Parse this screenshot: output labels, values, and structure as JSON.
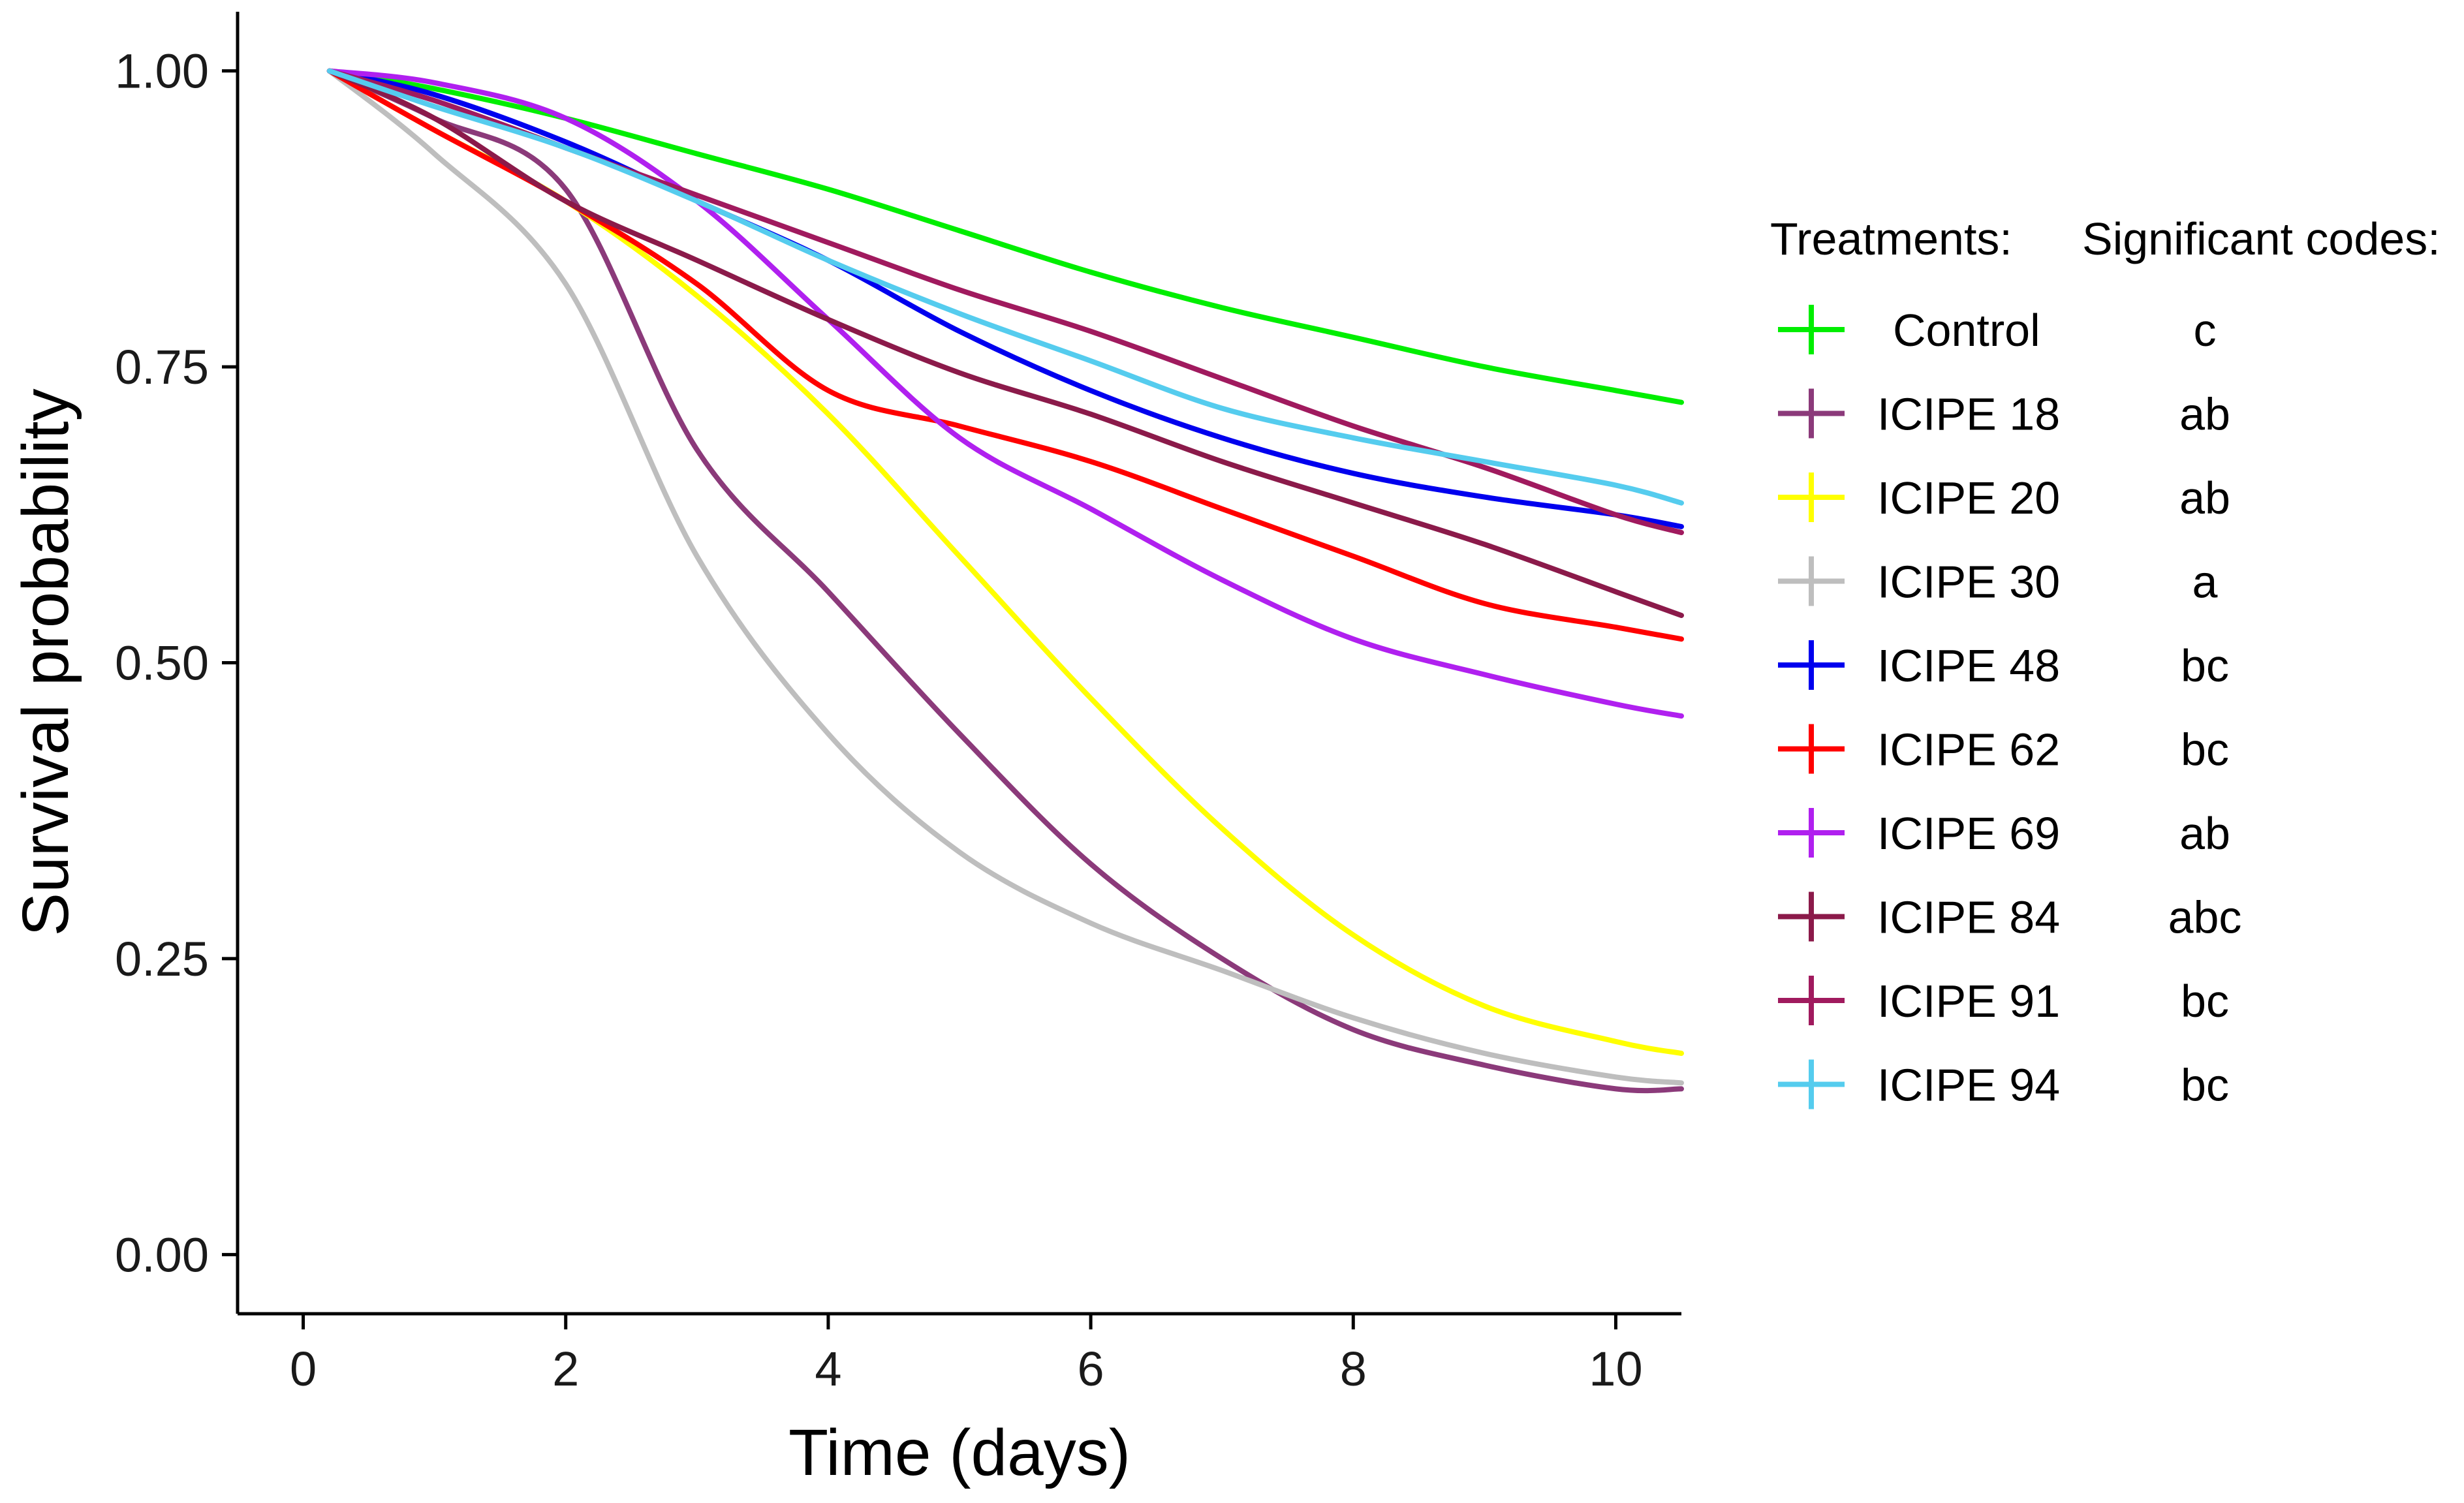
{
  "chart_data": {
    "type": "line",
    "title": "",
    "xlabel": "Time (days)",
    "ylabel": "Survival probability",
    "xlim": [
      -0.5,
      10.5
    ],
    "ylim": [
      -0.05,
      1.05
    ],
    "xticks": [
      0,
      2,
      4,
      6,
      8,
      10
    ],
    "xtick_labels": [
      "0",
      "2",
      "4",
      "6",
      "8",
      "10"
    ],
    "yticks": [
      0,
      0.25,
      0.5,
      0.75,
      1
    ],
    "ytick_labels": [
      "0.00",
      "0.25",
      "0.50",
      "0.75",
      "1.00"
    ],
    "grid": false,
    "legend": {
      "placement": "right",
      "treatments_header": "Treatments:",
      "codes_header": "Significant codes:"
    },
    "x": [
      0.2,
      1,
      2,
      3,
      4,
      5,
      6,
      7,
      8,
      9,
      10,
      10.5
    ],
    "series": [
      {
        "name": "Control",
        "code": "c",
        "color": "#00ee00",
        "values": [
          1.0,
          0.985,
          0.96,
          0.93,
          0.9,
          0.865,
          0.83,
          0.8,
          0.775,
          0.75,
          0.73,
          0.72
        ]
      },
      {
        "name": "ICIPE 18",
        "code": "ab",
        "color": "#8b3a7a",
        "values": [
          1.0,
          0.96,
          0.9,
          0.68,
          0.56,
          0.44,
          0.33,
          0.25,
          0.19,
          0.16,
          0.14,
          0.14
        ]
      },
      {
        "name": "ICIPE 20",
        "code": "ab",
        "color": "#ffff00",
        "values": [
          1.0,
          0.95,
          0.89,
          0.81,
          0.71,
          0.59,
          0.47,
          0.36,
          0.27,
          0.21,
          0.18,
          0.17
        ]
      },
      {
        "name": "ICIPE 30",
        "code": "a",
        "color": "#bebebe",
        "values": [
          1.0,
          0.93,
          0.82,
          0.59,
          0.44,
          0.34,
          0.28,
          0.24,
          0.2,
          0.17,
          0.15,
          0.145
        ]
      },
      {
        "name": "ICIPE 48",
        "code": "bc",
        "color": "#0000ee",
        "values": [
          1.0,
          0.98,
          0.94,
          0.89,
          0.84,
          0.78,
          0.73,
          0.69,
          0.66,
          0.64,
          0.625,
          0.615
        ]
      },
      {
        "name": "ICIPE 62",
        "code": "bc",
        "color": "#ff0000",
        "values": [
          1.0,
          0.95,
          0.89,
          0.82,
          0.73,
          0.7,
          0.67,
          0.63,
          0.59,
          0.55,
          0.53,
          0.52
        ]
      },
      {
        "name": "ICIPE 69",
        "code": "ab",
        "color": "#b020ef",
        "values": [
          1.0,
          0.99,
          0.96,
          0.89,
          0.79,
          0.69,
          0.63,
          0.57,
          0.52,
          0.49,
          0.465,
          0.455
        ]
      },
      {
        "name": "ICIPE 84",
        "code": "abc",
        "color": "#8b1a4a",
        "values": [
          1.0,
          0.96,
          0.89,
          0.84,
          0.79,
          0.745,
          0.71,
          0.67,
          0.635,
          0.6,
          0.56,
          0.54
        ]
      },
      {
        "name": "ICIPE 91",
        "code": "bc",
        "color": "#a01a5e",
        "values": [
          1.0,
          0.975,
          0.935,
          0.895,
          0.855,
          0.815,
          0.78,
          0.74,
          0.7,
          0.665,
          0.625,
          0.61
        ]
      },
      {
        "name": "ICIPE 94",
        "code": "bc",
        "color": "#55ccee",
        "values": [
          1.0,
          0.97,
          0.935,
          0.89,
          0.84,
          0.795,
          0.755,
          0.715,
          0.69,
          0.67,
          0.65,
          0.635
        ]
      }
    ]
  }
}
